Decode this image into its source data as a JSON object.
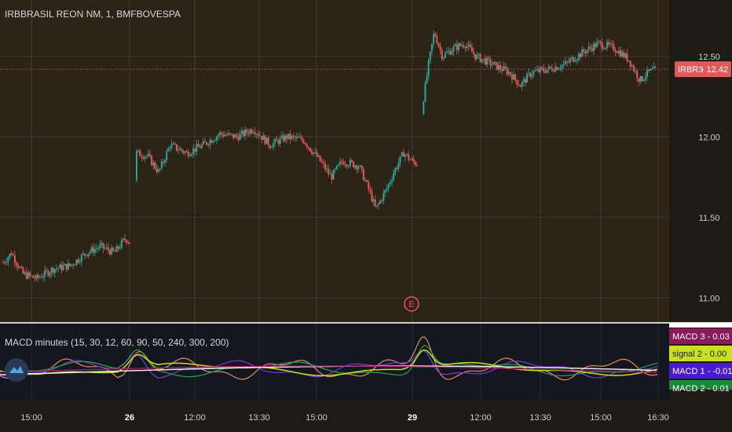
{
  "symbol_title": "IRBBRASIL REON NM, 1, BMFBOVESPA",
  "indicator_title": "MACD minutes (15, 30, 12, 60, 90, 50, 240, 300, 200)",
  "price_tag": {
    "symbol": "IRBR3",
    "value": "12.42",
    "color": "#e05a5a"
  },
  "colors": {
    "background": "#2b2416",
    "grid": "#3d3a33",
    "candle_up": "#26a69a",
    "candle_down": "#ef5350",
    "price_line": "#e05a5a",
    "macd_bg": "#141720"
  },
  "event_marker": "E",
  "chart_data": {
    "type": "candlestick",
    "y_axis": {
      "ticks": [
        "12.50",
        "12.00",
        "11.50",
        "11.00"
      ],
      "ylim": [
        10.85,
        12.85
      ]
    },
    "x_axis": {
      "ticks": [
        "15:00",
        "26",
        "12:00",
        "13:30",
        "15:00",
        "29",
        "12:00",
        "13:30",
        "15:00",
        "16:30"
      ],
      "bold_ticks": [
        "26",
        "29"
      ]
    },
    "last_price": 12.42,
    "price_path": [
      {
        "t": 0,
        "p": 11.22
      },
      {
        "t": 3,
        "p": 11.28
      },
      {
        "t": 7,
        "p": 11.15
      },
      {
        "t": 12,
        "p": 11.12
      },
      {
        "t": 18,
        "p": 11.18
      },
      {
        "t": 24,
        "p": 11.2
      },
      {
        "t": 30,
        "p": 11.28
      },
      {
        "t": 35,
        "p": 11.32
      },
      {
        "t": 40,
        "p": 11.28
      },
      {
        "t": 44,
        "p": 11.37
      },
      {
        "t": 46,
        "p": 11.34
      },
      {
        "t": 48,
        "p": 11.9
      },
      {
        "t": 52,
        "p": 11.88
      },
      {
        "t": 56,
        "p": 11.78
      },
      {
        "t": 60,
        "p": 11.95
      },
      {
        "t": 66,
        "p": 11.9
      },
      {
        "t": 72,
        "p": 11.95
      },
      {
        "t": 78,
        "p": 12.02
      },
      {
        "t": 84,
        "p": 12.0
      },
      {
        "t": 90,
        "p": 12.05
      },
      {
        "t": 96,
        "p": 11.95
      },
      {
        "t": 102,
        "p": 12.0
      },
      {
        "t": 108,
        "p": 11.98
      },
      {
        "t": 114,
        "p": 11.85
      },
      {
        "t": 118,
        "p": 11.75
      },
      {
        "t": 122,
        "p": 11.85
      },
      {
        "t": 128,
        "p": 11.82
      },
      {
        "t": 132,
        "p": 11.65
      },
      {
        "t": 134,
        "p": 11.55
      },
      {
        "t": 138,
        "p": 11.68
      },
      {
        "t": 141,
        "p": 11.8
      },
      {
        "t": 144,
        "p": 11.9
      },
      {
        "t": 147,
        "p": 11.85
      },
      {
        "t": 149,
        "p": 11.83
      },
      {
        "t": 151,
        "p": 12.22
      },
      {
        "t": 153,
        "p": 12.45
      },
      {
        "t": 155,
        "p": 12.65
      },
      {
        "t": 158,
        "p": 12.5
      },
      {
        "t": 162,
        "p": 12.55
      },
      {
        "t": 166,
        "p": 12.58
      },
      {
        "t": 170,
        "p": 12.5
      },
      {
        "t": 176,
        "p": 12.45
      },
      {
        "t": 182,
        "p": 12.4
      },
      {
        "t": 186,
        "p": 12.32
      },
      {
        "t": 190,
        "p": 12.4
      },
      {
        "t": 196,
        "p": 12.42
      },
      {
        "t": 202,
        "p": 12.45
      },
      {
        "t": 208,
        "p": 12.52
      },
      {
        "t": 214,
        "p": 12.58
      },
      {
        "t": 220,
        "p": 12.55
      },
      {
        "t": 225,
        "p": 12.48
      },
      {
        "t": 229,
        "p": 12.35
      },
      {
        "t": 232,
        "p": 12.4
      },
      {
        "t": 235,
        "p": 12.42
      }
    ],
    "macd_legend": [
      {
        "label": "MACD 3",
        "value": "0.03",
        "bg": "#8b1a5a",
        "fg": "#ffffff"
      },
      {
        "label": "signal 2",
        "value": "0.00",
        "bg": "#c8e020",
        "fg": "#1a1a1a"
      },
      {
        "label": "MACD 1",
        "value": "-0.01",
        "bg": "#4a1ad0",
        "fg": "#ffffff"
      },
      {
        "label": "MACD 2",
        "value": "0.01",
        "bg": "#1a8a3a",
        "fg": "#ffffff"
      }
    ]
  }
}
